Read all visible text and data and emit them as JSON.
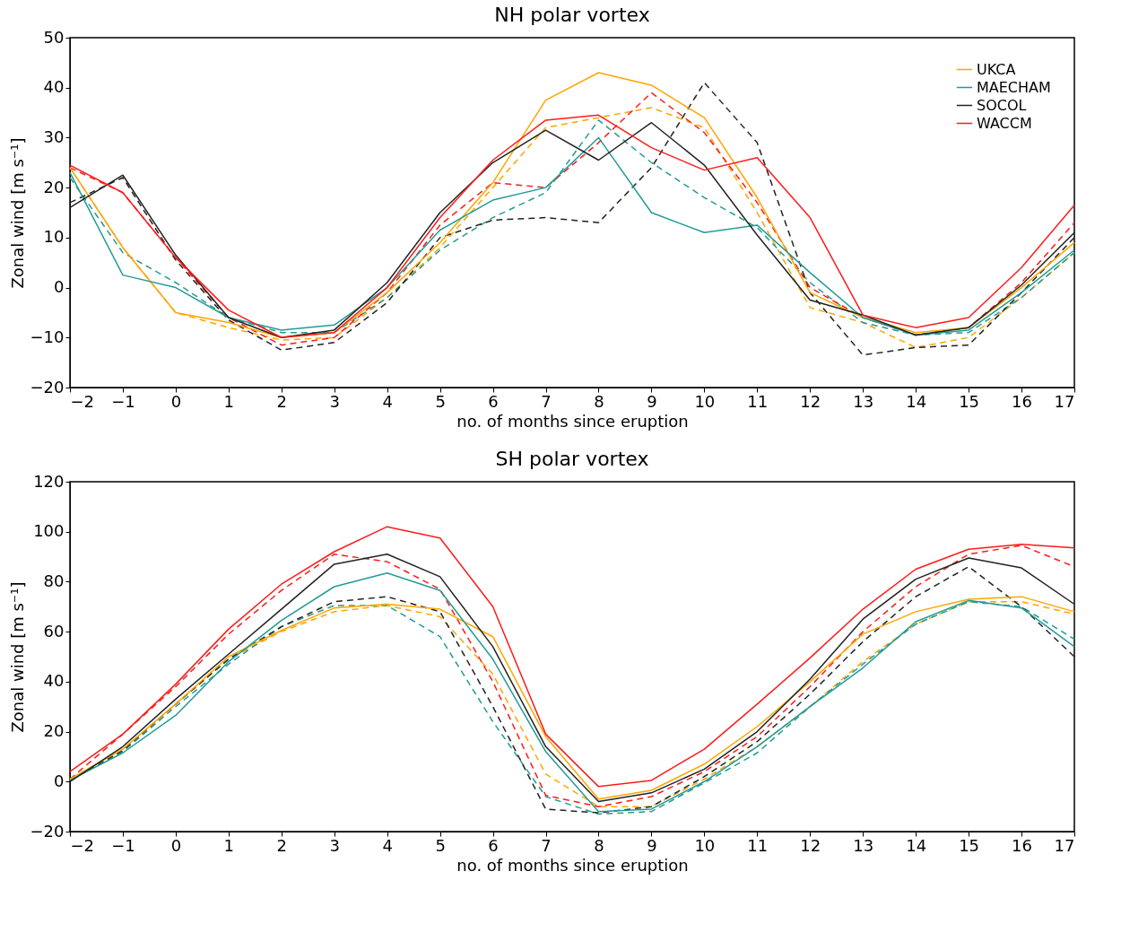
{
  "chart_data": [
    {
      "type": "line",
      "title": "NH polar vortex",
      "xlabel": "no. of months since eruption",
      "ylabel": "Zonal wind [m s⁻¹]",
      "x": [
        -2,
        -1,
        0,
        1,
        2,
        3,
        4,
        5,
        6,
        7,
        8,
        9,
        10,
        11,
        12,
        13,
        14,
        15,
        16,
        17
      ],
      "xlim": [
        -2,
        17
      ],
      "xticks": [
        -2,
        -1,
        0,
        1,
        2,
        3,
        4,
        5,
        6,
        7,
        8,
        9,
        10,
        11,
        12,
        13,
        14,
        15,
        16,
        17
      ],
      "ylim": [
        -20,
        50
      ],
      "yticks": [
        -20,
        -10,
        0,
        10,
        20,
        30,
        40,
        50
      ],
      "grid": false,
      "legend": "top right",
      "line_style": "solid",
      "marker": "none",
      "series": [
        {
          "color": "#ffa500",
          "line_style": "dashed",
          "values": [
            24,
            8,
            -5,
            -8,
            -10.5,
            -10,
            -2,
            8,
            20,
            32,
            34,
            36,
            32,
            15,
            -4,
            -7,
            -12,
            -10,
            -2,
            7
          ]
        },
        {
          "color": "#239b96",
          "line_style": "dashed",
          "values": [
            22,
            7,
            1,
            -6,
            -9,
            -9,
            -2,
            7.5,
            14,
            19,
            33.5,
            25,
            18,
            12,
            1,
            -7,
            -9.5,
            -9,
            -2,
            7
          ]
        },
        {
          "color": "#222222",
          "line_style": "dashed",
          "values": [
            17,
            22,
            5.5,
            -6.5,
            -12.5,
            -11,
            -3,
            10,
            13.5,
            14,
            13,
            24,
            41,
            29,
            -1,
            -13.5,
            -12,
            -11.5,
            -1,
            10
          ]
        },
        {
          "color": "#ff1a1a",
          "line_style": "dashed",
          "values": [
            24,
            19,
            6,
            -6,
            -11.5,
            -10,
            -1,
            12.5,
            21,
            20,
            29,
            39,
            31,
            17,
            0,
            -6,
            -9.5,
            -8,
            1,
            13
          ]
        },
        {
          "name": "UKCA",
          "color": "#ffa500",
          "values": [
            24,
            8,
            -5,
            -7,
            -10,
            -9,
            -1,
            9,
            21,
            37.5,
            43,
            40.5,
            34,
            18,
            -1,
            -6,
            -9,
            -8,
            0,
            9
          ]
        },
        {
          "name": "MAECHAM",
          "color": "#239b96",
          "values": [
            23,
            2.5,
            0,
            -6,
            -8.5,
            -7.5,
            0,
            11.5,
            17.5,
            20,
            30,
            15,
            11,
            12.5,
            3,
            -6,
            -9.5,
            -8.5,
            -1,
            7.5
          ]
        },
        {
          "name": "SOCOL",
          "color": "#222222",
          "values": [
            16,
            22.5,
            6.5,
            -6,
            -10,
            -8.5,
            1,
            15,
            25,
            31.5,
            25.5,
            33,
            24.5,
            10.5,
            -2.5,
            -5.5,
            -9.5,
            -8,
            0.5,
            11
          ]
        },
        {
          "name": "WACCM",
          "color": "#ff1a1a",
          "values": [
            24.5,
            19,
            6,
            -4.5,
            -10,
            -9,
            0,
            14,
            25.5,
            33.5,
            34.5,
            28,
            23.5,
            26,
            14,
            -5.5,
            -8,
            -6,
            4,
            16.5
          ]
        }
      ]
    },
    {
      "type": "line",
      "title": "SH polar vortex",
      "xlabel": "no. of months since eruption",
      "ylabel": "Zonal wind [m s⁻¹]",
      "x": [
        -2,
        -1,
        0,
        1,
        2,
        3,
        4,
        5,
        6,
        7,
        8,
        9,
        10,
        11,
        12,
        13,
        14,
        15,
        16,
        17
      ],
      "xlim": [
        -2,
        17
      ],
      "xticks": [
        -2,
        -1,
        0,
        1,
        2,
        3,
        4,
        5,
        6,
        7,
        8,
        9,
        10,
        11,
        12,
        13,
        14,
        15,
        16,
        17
      ],
      "ylim": [
        -20,
        120
      ],
      "yticks": [
        -20,
        0,
        20,
        40,
        60,
        80,
        100,
        120
      ],
      "grid": false,
      "line_style": "solid",
      "marker": "none",
      "series": [
        {
          "color": "#ffa500",
          "line_style": "dashed",
          "values": [
            1,
            13,
            31,
            49,
            60,
            68,
            70.5,
            66,
            43,
            3,
            -10,
            -10,
            1,
            14,
            30,
            48,
            63,
            72,
            72,
            67
          ]
        },
        {
          "color": "#239b96",
          "line_style": "dashed",
          "values": [
            0.5,
            12,
            30,
            47,
            62,
            70.5,
            70.5,
            58,
            24,
            -6,
            -13,
            -12,
            -0.5,
            11.5,
            30,
            47,
            63,
            72,
            70,
            57
          ]
        },
        {
          "color": "#222222",
          "line_style": "dashed",
          "values": [
            0.5,
            12.5,
            31,
            49,
            62,
            72,
            74,
            68,
            30,
            -11,
            -12.5,
            -10,
            2,
            16,
            35,
            56,
            74,
            86,
            70,
            50
          ]
        },
        {
          "color": "#ff1a1a",
          "line_style": "dashed",
          "values": [
            1,
            19,
            38,
            59,
            76.5,
            91,
            88,
            77,
            40,
            -5.5,
            -10,
            -6,
            4,
            18,
            38,
            60,
            78,
            91,
            94.5,
            86
          ]
        },
        {
          "color": "#ffa500",
          "values": [
            1,
            13,
            31,
            50,
            60.5,
            69.5,
            71,
            69,
            58,
            18,
            -7,
            -3.5,
            7,
            22,
            40,
            59,
            68,
            73,
            74,
            68
          ]
        },
        {
          "color": "#239b96",
          "values": [
            0.5,
            11.5,
            26.5,
            48,
            64.5,
            78,
            83.5,
            76.5,
            49,
            12,
            -12,
            -11,
            0,
            14,
            30,
            45.5,
            64,
            72.5,
            69.5,
            54
          ]
        },
        {
          "color": "#222222",
          "values": [
            0,
            14,
            33,
            51,
            69,
            87,
            91,
            82,
            54,
            14,
            -8,
            -4.5,
            5,
            20,
            41,
            65,
            81,
            89.5,
            85.5,
            71
          ]
        },
        {
          "color": "#ff1a1a",
          "values": [
            4,
            19,
            39,
            61,
            79,
            92,
            102,
            97.5,
            70,
            19,
            -2,
            0.5,
            13,
            31,
            49.5,
            69,
            85,
            93,
            95,
            93.5
          ]
        }
      ]
    }
  ]
}
